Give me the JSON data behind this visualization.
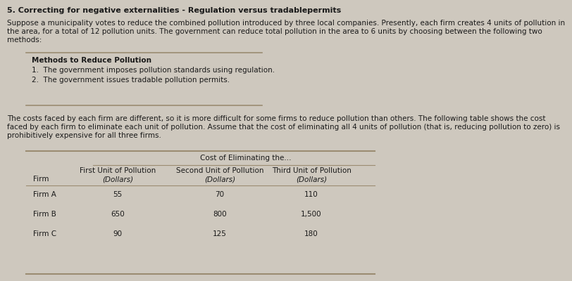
{
  "title": "5. Correcting for negative externalities - Regulation versus tradablepermits",
  "paragraph1_line1": "Suppose a municipality votes to reduce the combined pollution introduced by three local companies. Presently, each firm creates 4 units of pollution in",
  "paragraph1_line2": "the area, for a total of 12 pollution units. The government can reduce total pollution in the area to 6 units by choosing between the following two",
  "paragraph1_line3": "methods:",
  "box_header": "Methods to Reduce Pollution",
  "box_item1": "1.  The government imposes pollution standards using regulation.",
  "box_item2": "2.  The government issues tradable pollution permits.",
  "paragraph2_line1": "The costs faced by each firm are different, so it is more difficult for some firms to reduce pollution than others. The following table shows the cost",
  "paragraph2_line2": "faced by each firm to eliminate each unit of pollution. Assume that the cost of eliminating all 4 units of pollution (that is, reducing pollution to zero) is",
  "paragraph2_line3": "prohibitively expensive for all three firms.",
  "table_col_header_main": "Cost of Eliminating the...",
  "table_col1_label": "First Unit of Pollution",
  "table_col2_label": "Second Unit of Pollution",
  "table_col3_label": "Third Unit of Pollution",
  "table_row_label": "Firm",
  "table_firms": [
    "Firm A",
    "Firm B",
    "Firm C"
  ],
  "table_col1_vals": [
    "55",
    "650",
    "90"
  ],
  "table_col2_vals": [
    "70",
    "800",
    "125"
  ],
  "table_col3_vals": [
    "110",
    "1,500",
    "180"
  ],
  "bg_color": "#cec8be",
  "text_color": "#1a1a1a",
  "line_color": "#9b8c72",
  "title_fontsize": 8.0,
  "body_fontsize": 7.5,
  "table_fontsize": 7.5
}
